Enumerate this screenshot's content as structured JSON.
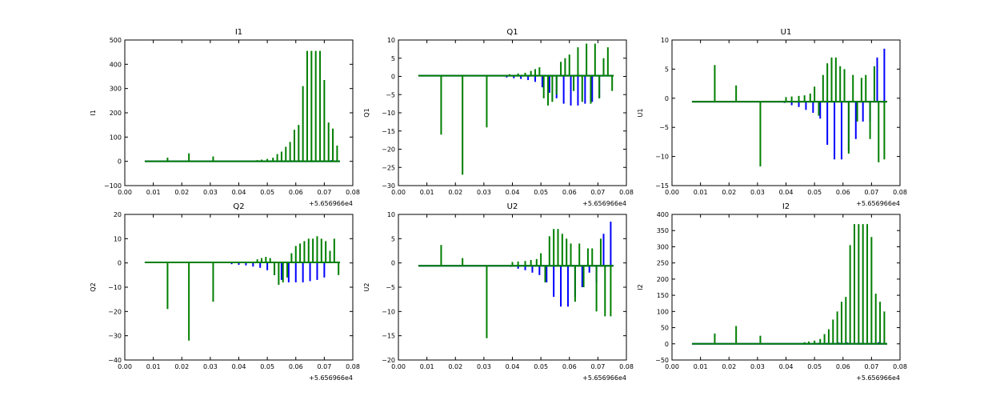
{
  "colors": {
    "blue": "#0000ff",
    "green": "#007f00",
    "axis": "#000000",
    "background": "#ffffff"
  },
  "chart_data": [
    {
      "type": "line",
      "title": "I1",
      "ylabel": "I1",
      "xlim": [
        0.0,
        0.08
      ],
      "ylim": [
        -100,
        500
      ],
      "xticks": [
        "0.00",
        "0.01",
        "0.02",
        "0.03",
        "0.04",
        "0.05",
        "0.06",
        "0.07",
        "0.08"
      ],
      "yticks": [
        "500",
        "400",
        "300",
        "200",
        "100",
        "0",
        "−100"
      ],
      "x_offset_label": "+5.656966e4",
      "baseline": {
        "blue": 0,
        "green": 0
      },
      "series": [
        {
          "color_key": "blue",
          "x": [
            0.0095,
            0.0125,
            0.0165,
            0.0195,
            0.0235,
            0.0265,
            0.0305,
            0.0335,
            0.0375,
            0.0405,
            0.0445,
            0.0475,
            0.0515,
            0.0545,
            0.0585,
            0.0615,
            0.0655,
            0.0685,
            0.0725
          ],
          "y": [
            1,
            1,
            1,
            1,
            1,
            1,
            1,
            1,
            1,
            2,
            2,
            2,
            3,
            3,
            4,
            4,
            5,
            5,
            5
          ]
        },
        {
          "color_key": "green",
          "x": [
            0.015,
            0.0225,
            0.031,
            0.0465,
            0.048,
            0.05,
            0.052,
            0.0535,
            0.055,
            0.0565,
            0.058,
            0.0595,
            0.061,
            0.0625,
            0.064,
            0.0655,
            0.067,
            0.0685,
            0.07,
            0.0715,
            0.073,
            0.0745
          ],
          "y": [
            15,
            33,
            20,
            5,
            7,
            10,
            15,
            30,
            40,
            60,
            80,
            130,
            150,
            310,
            455,
            455,
            455,
            455,
            335,
            160,
            135,
            65
          ]
        }
      ]
    },
    {
      "type": "line",
      "title": "Q1",
      "ylabel": "Q1",
      "xlim": [
        0.0,
        0.08
      ],
      "ylim": [
        -30,
        10
      ],
      "xticks": [
        "0.00",
        "0.01",
        "0.02",
        "0.03",
        "0.04",
        "0.05",
        "0.06",
        "0.07",
        "0.08"
      ],
      "yticks": [
        "10",
        "5",
        "0",
        "−5",
        "−10",
        "−15",
        "−20",
        "−25",
        "−30"
      ],
      "x_offset_label": "+5.656966e4",
      "baseline": {
        "blue": 0.2,
        "green": 0.2
      },
      "series": [
        {
          "color_key": "blue",
          "x": [
            0.038,
            0.0405,
            0.043,
            0.0455,
            0.048,
            0.0505,
            0.053,
            0.0555,
            0.058,
            0.0605,
            0.063,
            0.0655,
            0.068,
            0.0705
          ],
          "y": [
            -0.3,
            -0.5,
            -0.7,
            -1,
            -1.5,
            -3,
            -4.5,
            -6,
            -7.5,
            -8,
            -8,
            -7.5,
            -7,
            -6
          ]
        },
        {
          "color_key": "green",
          "x": [
            0.015,
            0.0225,
            0.031,
            0.039,
            0.042,
            0.0445,
            0.0465,
            0.048,
            0.0495,
            0.051,
            0.0525,
            0.054,
            0.0555,
            0.057,
            0.0585,
            0.06,
            0.0615,
            0.063,
            0.0645,
            0.066,
            0.0675,
            0.069,
            0.0705,
            0.072,
            0.0735,
            0.075
          ],
          "y": [
            -16,
            -27,
            -14,
            0.6,
            0.8,
            1,
            1.5,
            2,
            2.5,
            -6,
            -8,
            -7,
            -5,
            4,
            5,
            6,
            -4,
            8,
            -7,
            9,
            -7.5,
            9,
            -6,
            5,
            8,
            -4
          ]
        }
      ]
    },
    {
      "type": "line",
      "title": "U1",
      "ylabel": "U1",
      "xlim": [
        0.0,
        0.08
      ],
      "ylim": [
        -15,
        10
      ],
      "xticks": [
        "0.00",
        "0.01",
        "0.02",
        "0.03",
        "0.04",
        "0.05",
        "0.06",
        "0.07",
        "0.08"
      ],
      "yticks": [
        "10",
        "5",
        "0",
        "−5",
        "−10",
        "−15"
      ],
      "x_offset_label": "+5.656966e4",
      "baseline": {
        "blue": -0.6,
        "green": -0.6
      },
      "series": [
        {
          "color_key": "blue",
          "x": [
            0.0395,
            0.042,
            0.0445,
            0.047,
            0.0495,
            0.052,
            0.0545,
            0.057,
            0.0595,
            0.062,
            0.0645,
            0.067,
            0.0695,
            0.072,
            0.0745
          ],
          "y": [
            -0.8,
            -1.2,
            -1.5,
            -2,
            -2.5,
            -3.5,
            -8,
            -10.5,
            -10.5,
            -9,
            -7,
            -4,
            -4,
            7,
            8.5
          ]
        },
        {
          "color_key": "green",
          "x": [
            0.015,
            0.0225,
            0.031,
            0.04,
            0.042,
            0.0445,
            0.0465,
            0.0485,
            0.05,
            0.0515,
            0.053,
            0.0545,
            0.056,
            0.0575,
            0.059,
            0.0605,
            0.062,
            0.0635,
            0.065,
            0.0665,
            0.068,
            0.0695,
            0.071,
            0.0725,
            0.0745
          ],
          "y": [
            5.7,
            2.2,
            -11.7,
            0.2,
            0.3,
            0.4,
            0.5,
            0.8,
            2,
            -3,
            4,
            6,
            7,
            7,
            5.5,
            5,
            -9.5,
            4,
            -4,
            3.5,
            4,
            -7,
            5.5,
            -11,
            -10.5
          ]
        }
      ]
    },
    {
      "type": "line",
      "title": "Q2",
      "ylabel": "Q2",
      "xlim": [
        0.0,
        0.08
      ],
      "ylim": [
        -40,
        20
      ],
      "xticks": [
        "0.00",
        "0.01",
        "0.02",
        "0.03",
        "0.04",
        "0.05",
        "0.06",
        "0.07",
        "0.08"
      ],
      "yticks": [
        "20",
        "10",
        "0",
        "−10",
        "−20",
        "−30",
        "−40"
      ],
      "x_offset_label": "+5.656966e4",
      "baseline": {
        "blue": 0.2,
        "green": 0.2
      },
      "series": [
        {
          "color_key": "blue",
          "x": [
            0.0375,
            0.04,
            0.0425,
            0.045,
            0.0475,
            0.05,
            0.0525,
            0.055,
            0.0575,
            0.06,
            0.0625,
            0.065,
            0.0675,
            0.07
          ],
          "y": [
            -0.5,
            -0.8,
            -1,
            -1.5,
            -2,
            -3,
            -5,
            -7,
            -8,
            -8,
            -8,
            -7.5,
            -7,
            -6
          ]
        },
        {
          "color_key": "green",
          "x": [
            0.015,
            0.0225,
            0.031,
            0.0465,
            0.048,
            0.0495,
            0.051,
            0.0525,
            0.054,
            0.0555,
            0.057,
            0.0585,
            0.06,
            0.0615,
            0.063,
            0.0645,
            0.066,
            0.0675,
            0.069,
            0.0705,
            0.072,
            0.0735,
            0.075
          ],
          "y": [
            -19,
            -32,
            -16,
            1.5,
            2,
            2.5,
            2,
            -5,
            -9,
            -8,
            -6,
            4,
            7,
            8,
            9,
            10,
            10,
            11,
            10,
            9,
            5,
            10,
            -5
          ]
        }
      ]
    },
    {
      "type": "line",
      "title": "U2",
      "ylabel": "U2",
      "xlim": [
        0.0,
        0.08
      ],
      "ylim": [
        -20,
        10
      ],
      "xticks": [
        "0.00",
        "0.01",
        "0.02",
        "0.03",
        "0.04",
        "0.05",
        "0.06",
        "0.07",
        "0.08"
      ],
      "yticks": [
        "10",
        "5",
        "0",
        "−5",
        "−10",
        "−15",
        "−20"
      ],
      "x_offset_label": "+5.656966e4",
      "baseline": {
        "blue": -0.6,
        "green": -0.6
      },
      "series": [
        {
          "color_key": "blue",
          "x": [
            0.0395,
            0.042,
            0.0445,
            0.047,
            0.0495,
            0.052,
            0.0545,
            0.057,
            0.0595,
            0.062,
            0.0645,
            0.067,
            0.0695,
            0.072,
            0.0745
          ],
          "y": [
            -0.8,
            -1.2,
            -1.5,
            -2,
            -2.5,
            -4,
            -7,
            -9,
            -9,
            -7,
            -5,
            -2,
            -4,
            6,
            8.5
          ]
        },
        {
          "color_key": "green",
          "x": [
            0.015,
            0.0225,
            0.031,
            0.04,
            0.042,
            0.0445,
            0.0465,
            0.0485,
            0.05,
            0.0515,
            0.053,
            0.0545,
            0.056,
            0.0575,
            0.059,
            0.0605,
            0.062,
            0.0635,
            0.065,
            0.0665,
            0.068,
            0.0695,
            0.071,
            0.0725,
            0.0745
          ],
          "y": [
            3.7,
            1,
            -15.5,
            0.2,
            0.3,
            0.4,
            0.6,
            0.8,
            2,
            -4,
            5.5,
            7,
            7,
            6,
            5,
            4,
            -8,
            4,
            -5,
            3,
            3,
            -10,
            5,
            -11,
            -11
          ]
        }
      ]
    },
    {
      "type": "line",
      "title": "I2",
      "ylabel": "I2",
      "xlim": [
        0.0,
        0.08
      ],
      "ylim": [
        -50,
        400
      ],
      "xticks": [
        "0.00",
        "0.01",
        "0.02",
        "0.03",
        "0.04",
        "0.05",
        "0.06",
        "0.07",
        "0.08"
      ],
      "yticks": [
        "400",
        "350",
        "300",
        "250",
        "200",
        "150",
        "100",
        "50",
        "0",
        "−50"
      ],
      "x_offset_label": "+5.656966e4",
      "baseline": {
        "blue": 0,
        "green": 0
      },
      "series": [
        {
          "color_key": "blue",
          "x": [
            0.0095,
            0.0125,
            0.0165,
            0.0195,
            0.0235,
            0.0265,
            0.0305,
            0.0335,
            0.0375,
            0.0405,
            0.0445,
            0.0475,
            0.0515,
            0.0545,
            0.0585,
            0.0615,
            0.0655,
            0.0685,
            0.0725
          ],
          "y": [
            1,
            1,
            1,
            1,
            1,
            1,
            1,
            1,
            1,
            2,
            2,
            2,
            3,
            3,
            4,
            4,
            5,
            5,
            5
          ]
        },
        {
          "color_key": "green",
          "x": [
            0.015,
            0.0225,
            0.031,
            0.0465,
            0.048,
            0.05,
            0.052,
            0.0535,
            0.055,
            0.0565,
            0.058,
            0.0595,
            0.061,
            0.0625,
            0.064,
            0.0655,
            0.067,
            0.0685,
            0.07,
            0.0715,
            0.073,
            0.0745
          ],
          "y": [
            32,
            55,
            25,
            5,
            7,
            10,
            15,
            30,
            45,
            75,
            100,
            130,
            145,
            305,
            370,
            370,
            370,
            370,
            330,
            155,
            130,
            100
          ]
        }
      ]
    }
  ]
}
